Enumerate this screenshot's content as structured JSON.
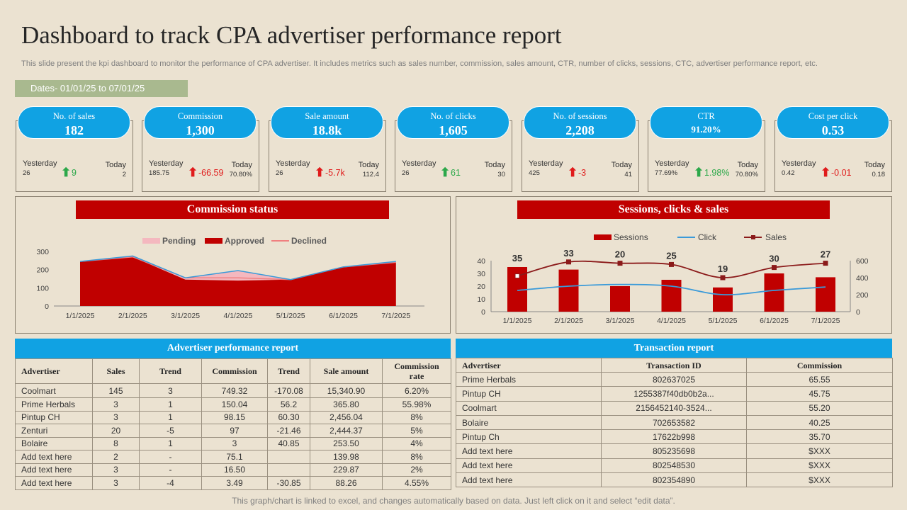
{
  "title": "Dashboard to track CPA advertiser performance report",
  "subtitle": "This slide present the kpi dashboard to monitor the performance of CPA advertiser. It includes metrics such as sales number, commission, sales amount, CTR, number of clicks, sessions, CTC, advertiser performance report, etc.",
  "dates": "Dates- 01/01/25 to 07/01/25",
  "kpis": [
    {
      "label": "No. of sales",
      "value": "182",
      "yesterday_label": "Yesterday",
      "yesterday": "26",
      "today_label": "Today",
      "today": "2",
      "change": "9",
      "direction": "up"
    },
    {
      "label": "Commission",
      "value": "1,300",
      "yesterday_label": "Yesterday",
      "yesterday": "185.75",
      "today_label": "Today",
      "today": "70.80%",
      "change": "-66.59",
      "direction": "down"
    },
    {
      "label": "Sale amount",
      "value": "18.8k",
      "yesterday_label": "Yesterday",
      "yesterday": "26",
      "today_label": "Today",
      "today": "112.4",
      "change": "-5.7k",
      "direction": "down"
    },
    {
      "label": "No. of clicks",
      "value": "1,605",
      "yesterday_label": "Yesterday",
      "yesterday": "26",
      "today_label": "Today",
      "today": "30",
      "change": "61",
      "direction": "up"
    },
    {
      "label": "No. of sessions",
      "value": "2,208",
      "yesterday_label": "Yesterday",
      "yesterday": "425",
      "today_label": "Today",
      "today": "41",
      "change": "-3",
      "direction": "down"
    },
    {
      "label": "CTR",
      "value": "91.20%",
      "yesterday_label": "Yesterday",
      "yesterday": "77.69%",
      "today_label": "Today",
      "today": "70.80%",
      "change": "1.98%",
      "direction": "up"
    },
    {
      "label": "Cost per click",
      "value": "0.53",
      "yesterday_label": "Yesterday",
      "yesterday": "0.42",
      "today_label": "Today",
      "today": "0.18",
      "change": "-0.01",
      "direction": "down"
    }
  ],
  "colors": {
    "accent_blue": "#10a2e3",
    "red": "#c00000",
    "pending": "#f4b8bf",
    "declined": "#f08080",
    "click_line": "#3a9ad9",
    "up": "#2ca84a",
    "down": "#e01b1b"
  },
  "chart_data": [
    {
      "type": "area",
      "title": "Commission status",
      "categories": [
        "1/1/2025",
        "2/1/2025",
        "3/1/2025",
        "4/1/2025",
        "5/1/2025",
        "6/1/2025",
        "7/1/2025"
      ],
      "series": [
        {
          "name": "Approved",
          "values": [
            245,
            270,
            145,
            140,
            145,
            215,
            240
          ]
        },
        {
          "name": "Pending",
          "values": [
            0,
            0,
            10,
            15,
            0,
            0,
            0
          ]
        },
        {
          "name": "Declined",
          "values": [
            0,
            5,
            0,
            40,
            0,
            0,
            5
          ]
        }
      ],
      "legend": [
        "Pending",
        "Approved",
        "Declined"
      ],
      "yticks": [
        "0",
        "100",
        "200",
        "300"
      ],
      "ylim": [
        0,
        300
      ]
    },
    {
      "type": "bar",
      "title": "Sessions, clicks & sales",
      "categories": [
        "1/1/2025",
        "2/1/2025",
        "3/1/2025",
        "4/1/2025",
        "5/1/2025",
        "6/1/2025",
        "7/1/2025"
      ],
      "series": [
        {
          "name": "Sessions",
          "axis": "left",
          "values": [
            35,
            33,
            20,
            25,
            19,
            30,
            27
          ]
        },
        {
          "name": "Click",
          "axis": "right",
          "values": [
            250,
            300,
            320,
            300,
            200,
            250,
            290
          ]
        },
        {
          "name": "Sales",
          "axis": "right",
          "values": [
            420,
            585,
            570,
            555,
            400,
            520,
            570
          ]
        }
      ],
      "bar_labels": [
        "35",
        "33",
        "20",
        "25",
        "19",
        "30",
        "27"
      ],
      "legend": [
        "Sessions",
        "Click",
        "Sales"
      ],
      "y_left_ticks": [
        "0",
        "10",
        "20",
        "30",
        "40"
      ],
      "y_right_ticks": [
        "0",
        "200",
        "400",
        "600"
      ],
      "ylim_left": [
        0,
        40
      ],
      "ylim_right": [
        0,
        600
      ]
    }
  ],
  "advertiser_report": {
    "title": "Advertiser performance  report",
    "headers": [
      "Advertiser",
      "Sales",
      "Trend",
      "Commission",
      "Trend",
      "Sale amount",
      "Commission rate"
    ],
    "rows": [
      [
        "Coolmart",
        "145",
        "3",
        "749.32",
        "-170.08",
        "15,340.90",
        "6.20%"
      ],
      [
        "Prime Herbals",
        "3",
        "1",
        "150.04",
        "56.2",
        "365.80",
        "55.98%"
      ],
      [
        "Pintup CH",
        "3",
        "1",
        "98.15",
        "60.30",
        "2,456.04",
        "8%"
      ],
      [
        "Zenturi",
        "20",
        "-5",
        "97",
        "-21.46",
        "2,444.37",
        "5%"
      ],
      [
        "Bolaire",
        "8",
        "1",
        "3",
        "40.85",
        "253.50",
        "4%"
      ],
      [
        "Add text here",
        "2",
        "-",
        "75.1",
        "",
        "139.98",
        "8%"
      ],
      [
        "Add text here",
        "3",
        "-",
        "16.50",
        "",
        "229.87",
        "2%"
      ],
      [
        "Add text here",
        "3",
        "-4",
        "3.49",
        "-30.85",
        "88.26",
        "4.55%"
      ]
    ]
  },
  "transaction_report": {
    "title": "Transaction report",
    "headers": [
      "Advertiser",
      "Transaction ID",
      "Commission"
    ],
    "rows": [
      [
        "Prime Herbals",
        "802637025",
        "65.55"
      ],
      [
        "Pintup CH",
        "1255387f40db0b2a...",
        "45.75"
      ],
      [
        "Coolmart",
        "2156452140-3524...",
        "55.20"
      ],
      [
        "Bolaire",
        "702653582",
        "40.25"
      ],
      [
        "Pintup Ch",
        "17622b998",
        "35.70"
      ],
      [
        "Add text here",
        "805235698",
        "$XXX"
      ],
      [
        "Add text here",
        "802548530",
        "$XXX"
      ],
      [
        "Add text here",
        "802354890",
        "$XXX"
      ]
    ]
  },
  "footer": "This graph/chart is linked to excel, and changes automatically based on data. Just left click on it and select “edit data”."
}
